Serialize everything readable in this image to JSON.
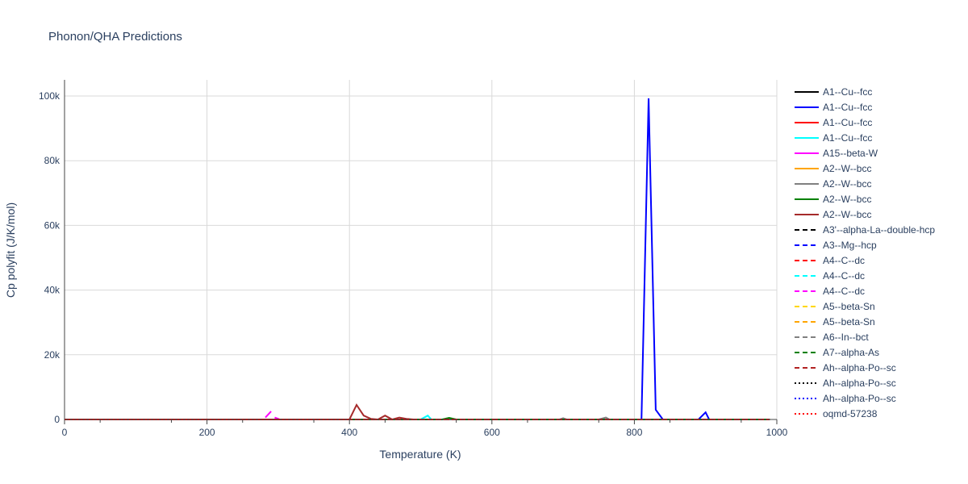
{
  "chart_data": {
    "type": "line",
    "title": "Phonon/QHA Predictions",
    "xlabel": "Temperature (K)",
    "ylabel": "Cp polyfit (J/K/mol)",
    "xlim": [
      0,
      1000
    ],
    "ylim": [
      0,
      105000
    ],
    "xticks": [
      0,
      200,
      400,
      600,
      800,
      1000
    ],
    "xtick_labels": [
      "0",
      "200",
      "400",
      "600",
      "800",
      "1000"
    ],
    "yticks": [
      0,
      20000,
      40000,
      60000,
      80000,
      100000
    ],
    "ytick_labels": [
      "0",
      "20k",
      "40k",
      "60k",
      "80k",
      "100k"
    ],
    "grid": true,
    "legend_placement": "right",
    "series": [
      {
        "name": "A1--Cu--fcc",
        "color": "#000000",
        "dash": "solid",
        "x": [
          0,
          990
        ],
        "y": [
          0,
          0
        ]
      },
      {
        "name": "A1--Cu--fcc",
        "color": "#0000ff",
        "dash": "solid",
        "x": [
          0,
          810,
          820,
          830,
          840,
          890,
          900,
          905,
          990
        ],
        "y": [
          0,
          0,
          99300,
          3000,
          0,
          0,
          2200,
          0,
          0
        ]
      },
      {
        "name": "A1--Cu--fcc",
        "color": "#ff0000",
        "dash": "solid",
        "x": [
          0,
          990
        ],
        "y": [
          0,
          0
        ]
      },
      {
        "name": "A1--Cu--fcc",
        "color": "#00ffff",
        "dash": "solid",
        "x": [
          0,
          500,
          510,
          515,
          990
        ],
        "y": [
          0,
          0,
          1200,
          0,
          0
        ]
      },
      {
        "name": "A15--beta-W",
        "color": "#ff00ff",
        "dash": "solid",
        "x": [
          282,
          290
        ],
        "y": [
          600,
          2500
        ]
      },
      {
        "name": "A2--W--bcc",
        "color": "#ffa500",
        "dash": "solid",
        "x": [
          0,
          990
        ],
        "y": [
          0,
          0
        ]
      },
      {
        "name": "A2--W--bcc",
        "color": "#808080",
        "dash": "solid",
        "x": [
          0,
          695,
          700,
          705,
          750,
          760,
          765
        ],
        "y": [
          0,
          0,
          400,
          0,
          0,
          600,
          0
        ]
      },
      {
        "name": "A2--W--bcc",
        "color": "#008000",
        "dash": "solid",
        "x": [
          0,
          530,
          540,
          550,
          990
        ],
        "y": [
          0,
          0,
          500,
          0,
          0
        ]
      },
      {
        "name": "A2--W--bcc",
        "color": "#a52a2a",
        "dash": "solid",
        "x": [
          0,
          400,
          410,
          420,
          430,
          440,
          450,
          460,
          470,
          480,
          490
        ],
        "y": [
          0,
          0,
          4500,
          1200,
          200,
          0,
          1200,
          0,
          600,
          200,
          0
        ]
      },
      {
        "name": "A3'--alpha-La--double-hcp",
        "color": "#000000",
        "dash": "dash",
        "x": [
          0,
          990
        ],
        "y": [
          0,
          0
        ]
      },
      {
        "name": "A3--Mg--hcp",
        "color": "#0000ff",
        "dash": "dash",
        "x": [
          0,
          990
        ],
        "y": [
          0,
          0
        ]
      },
      {
        "name": "A4--C--dc",
        "color": "#ff0000",
        "dash": "dash",
        "x": [
          0,
          990
        ],
        "y": [
          0,
          0
        ]
      },
      {
        "name": "A4--C--dc",
        "color": "#00ffff",
        "dash": "dash",
        "x": [
          0,
          990
        ],
        "y": [
          0,
          0
        ]
      },
      {
        "name": "A4--C--dc",
        "color": "#ff00ff",
        "dash": "dash",
        "x": [
          295,
          300,
          305,
          990
        ],
        "y": [
          600,
          200,
          0,
          0
        ]
      },
      {
        "name": "A5--beta-Sn",
        "color": "#ffd700",
        "dash": "dash",
        "x": [
          0,
          990
        ],
        "y": [
          0,
          0
        ]
      },
      {
        "name": "A5--beta-Sn",
        "color": "#ffa500",
        "dash": "dash",
        "x": [
          0,
          990
        ],
        "y": [
          0,
          0
        ]
      },
      {
        "name": "A6--In--bct",
        "color": "#808080",
        "dash": "dash",
        "x": [
          0,
          990
        ],
        "y": [
          0,
          0
        ]
      },
      {
        "name": "A7--alpha-As",
        "color": "#008000",
        "dash": "dash",
        "x": [
          0,
          990
        ],
        "y": [
          0,
          0
        ]
      },
      {
        "name": "Ah--alpha-Po--sc",
        "color": "#b22222",
        "dash": "dash",
        "x": [
          0,
          990
        ],
        "y": [
          0,
          0
        ]
      },
      {
        "name": "Ah--alpha-Po--sc",
        "color": "#000000",
        "dash": "dot",
        "x": [
          0,
          990
        ],
        "y": [
          0,
          0
        ]
      },
      {
        "name": "Ah--alpha-Po--sc",
        "color": "#0000ff",
        "dash": "dot",
        "x": [
          0,
          990
        ],
        "y": [
          0,
          0
        ]
      },
      {
        "name": "oqmd-57238",
        "color": "#ff0000",
        "dash": "dot",
        "x": [
          0,
          990
        ],
        "y": [
          0,
          0
        ]
      }
    ]
  }
}
